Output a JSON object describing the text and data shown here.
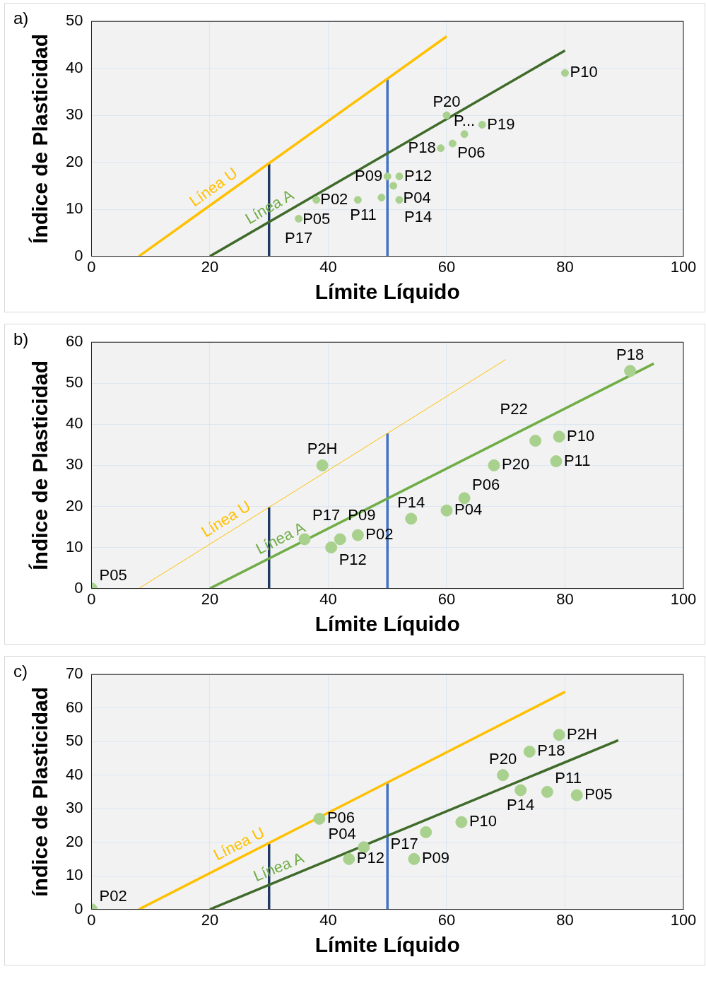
{
  "chart_data": [
    {
      "type": "scatter",
      "title": "a)",
      "xlabel": "Límite Líquido",
      "ylabel": "Índice de Plasticidad",
      "xlim": [
        0,
        100
      ],
      "xticks": [
        0,
        20,
        40,
        60,
        80,
        100
      ],
      "ylim": [
        0,
        50
      ],
      "yticks": [
        0,
        10,
        20,
        30,
        40,
        50
      ],
      "grid": true,
      "legend": false,
      "series": [
        {
          "type": "line",
          "name": "Línea U",
          "color": "#ffc000",
          "x": [
            8,
            60
          ],
          "values": [
            0,
            46.8
          ]
        },
        {
          "type": "line",
          "name": "Línea A",
          "color": "#3f6b2a",
          "x": [
            20,
            80
          ],
          "values": [
            0,
            43.8
          ]
        },
        {
          "type": "line",
          "color": "#1f3864",
          "x": [
            30,
            30
          ],
          "values": [
            0,
            19.8
          ]
        },
        {
          "type": "line",
          "color": "#4472c4",
          "x": [
            50,
            50
          ],
          "values": [
            0,
            37.8
          ]
        },
        {
          "type": "scatter",
          "color": "#a9d18e",
          "x": [
            80,
            60,
            66,
            63,
            61,
            59,
            50,
            52,
            51,
            49,
            52,
            45,
            38,
            35
          ],
          "values": [
            39,
            30,
            28,
            26,
            24,
            23,
            17,
            17,
            15,
            12.5,
            12,
            12,
            12,
            8
          ]
        }
      ],
      "annotations": [
        {
          "text": "P10",
          "x": 80,
          "y": 39
        },
        {
          "text": "P20",
          "x": 60,
          "y": 30
        },
        {
          "text": "P19",
          "x": 66,
          "y": 28
        },
        {
          "text": "P...",
          "x": 63,
          "y": 26
        },
        {
          "text": "P06",
          "x": 61,
          "y": 24
        },
        {
          "text": "P18",
          "x": 59,
          "y": 23
        },
        {
          "text": "P09",
          "x": 50,
          "y": 17
        },
        {
          "text": "P12",
          "x": 52,
          "y": 17
        },
        {
          "text": "P04",
          "x": 51,
          "y": 15
        },
        {
          "text": "P11",
          "x": 49,
          "y": 12.5
        },
        {
          "text": "P14",
          "x": 52,
          "y": 12
        },
        {
          "text": "P02",
          "x": 45,
          "y": 12
        },
        {
          "text": "P05",
          "x": 38,
          "y": 12
        },
        {
          "text": "P17",
          "x": 35,
          "y": 8
        }
      ]
    },
    {
      "type": "scatter",
      "title": "b)",
      "xlabel": "Límite Líquido",
      "ylabel": "Índice de Plasticidad",
      "xlim": [
        0,
        100
      ],
      "xticks": [
        0,
        20,
        40,
        60,
        80,
        100
      ],
      "ylim": [
        0,
        60
      ],
      "yticks": [
        0,
        10,
        20,
        30,
        40,
        50,
        60
      ],
      "grid": true,
      "legend": false,
      "series": [
        {
          "type": "line",
          "name": "Línea U",
          "color": "#ffc000",
          "x": [
            8,
            70
          ],
          "values": [
            0,
            55.8
          ]
        },
        {
          "type": "line",
          "name": "Línea A",
          "color": "#70ad47",
          "x": [
            20,
            95
          ],
          "values": [
            0,
            54.8
          ]
        },
        {
          "type": "line",
          "color": "#1f3864",
          "x": [
            30,
            30
          ],
          "values": [
            0,
            19.8
          ]
        },
        {
          "type": "line",
          "color": "#4472c4",
          "x": [
            50,
            50
          ],
          "values": [
            0,
            37.8
          ]
        },
        {
          "type": "scatter",
          "color": "#a9d18e",
          "x": [
            0,
            39,
            36,
            40.5,
            42,
            45,
            54,
            60,
            63,
            68,
            75,
            79,
            78.5,
            91
          ],
          "values": [
            0,
            30,
            12,
            10,
            12,
            13,
            17,
            19,
            22,
            30,
            36,
            37,
            31,
            53
          ]
        }
      ],
      "annotations": [
        {
          "text": "P05",
          "x": 0,
          "y": 0
        },
        {
          "text": "P2H",
          "x": 39,
          "y": 30
        },
        {
          "text": "P17",
          "x": 36,
          "y": 12
        },
        {
          "text": "P12",
          "x": 40.5,
          "y": 10
        },
        {
          "text": "P09",
          "x": 42,
          "y": 12
        },
        {
          "text": "P02",
          "x": 45,
          "y": 13
        },
        {
          "text": "P14",
          "x": 54,
          "y": 17
        },
        {
          "text": "P04",
          "x": 60,
          "y": 19
        },
        {
          "text": "P06",
          "x": 63,
          "y": 22
        },
        {
          "text": "P20",
          "x": 68,
          "y": 30
        },
        {
          "text": "P22",
          "x": 75,
          "y": 36
        },
        {
          "text": "P10",
          "x": 79,
          "y": 37
        },
        {
          "text": "P11",
          "x": 78.5,
          "y": 31
        },
        {
          "text": "P18",
          "x": 91,
          "y": 53
        }
      ]
    },
    {
      "type": "scatter",
      "title": "c)",
      "xlabel": "Límite Líquido",
      "ylabel": "índice de Plasticidad",
      "xlim": [
        0,
        100
      ],
      "xticks": [
        0,
        20,
        40,
        60,
        80,
        100
      ],
      "ylim": [
        0,
        70
      ],
      "yticks": [
        0,
        10,
        20,
        30,
        40,
        50,
        60,
        70
      ],
      "grid": true,
      "legend": false,
      "series": [
        {
          "type": "line",
          "name": "Línea U",
          "color": "#ffc000",
          "x": [
            8,
            80
          ],
          "values": [
            0,
            64.8
          ]
        },
        {
          "type": "line",
          "name": "Línea A",
          "color": "#3f6b2a",
          "x": [
            20,
            89
          ],
          "values": [
            0,
            50.4
          ]
        },
        {
          "type": "line",
          "color": "#1f3864",
          "x": [
            30,
            30
          ],
          "values": [
            0,
            19.8
          ]
        },
        {
          "type": "line",
          "color": "#4472c4",
          "x": [
            50,
            50
          ],
          "values": [
            0,
            37.8
          ]
        },
        {
          "type": "scatter",
          "color": "#a9d18e",
          "x": [
            0,
            38.5,
            46,
            43.5,
            54.5,
            56.5,
            62.5,
            69.5,
            72.5,
            74,
            79,
            77,
            82
          ],
          "values": [
            0,
            27,
            18.5,
            15,
            15,
            23,
            26,
            40,
            35.5,
            47,
            52,
            35,
            34
          ]
        }
      ],
      "annotations": [
        {
          "text": "P02",
          "x": 0,
          "y": 0
        },
        {
          "text": "P06",
          "x": 38.5,
          "y": 27
        },
        {
          "text": "P04",
          "x": 46,
          "y": 18.5
        },
        {
          "text": "P12",
          "x": 43.5,
          "y": 15
        },
        {
          "text": "P09",
          "x": 54.5,
          "y": 15
        },
        {
          "text": "P17",
          "x": 56.5,
          "y": 23
        },
        {
          "text": "P10",
          "x": 62.5,
          "y": 26
        },
        {
          "text": "P20",
          "x": 69.5,
          "y": 40
        },
        {
          "text": "P14",
          "x": 72.5,
          "y": 35.5
        },
        {
          "text": "P18",
          "x": 74,
          "y": 47
        },
        {
          "text": "P2H",
          "x": 79,
          "y": 52
        },
        {
          "text": "P11",
          "x": 77,
          "y": 35
        },
        {
          "text": "P05",
          "x": 82,
          "y": 34
        }
      ]
    }
  ]
}
